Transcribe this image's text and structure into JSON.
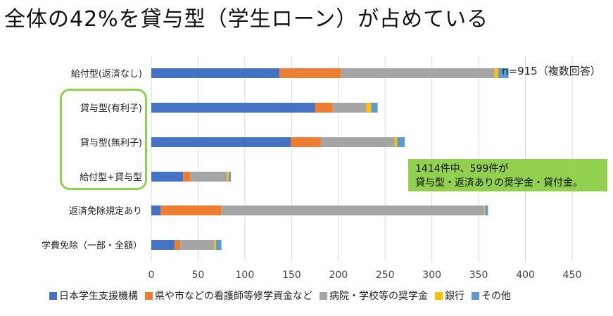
{
  "title": "全体の42%を貸与型（学生ローン）が占めている",
  "note": "n=915（複数回答）",
  "callout": {
    "line1": "1414件中、599件が",
    "line2": "貸与型・返済ありの奨学金・貸付金。"
  },
  "chart_data": {
    "type": "bar",
    "orientation": "horizontal",
    "stacked": true,
    "categories": [
      "給付型(返済なし)",
      "貸与型(有利子)",
      "貸与型(無利子)",
      "給付型+貸与型",
      "返済免除規定あり",
      "学費免除（一部・全額）"
    ],
    "series": [
      {
        "name": "日本学生支援機構",
        "color": "#4472c4",
        "values": [
          137,
          175,
          149,
          34,
          10,
          25
        ]
      },
      {
        "name": "県や市などの看護師等修学資金など",
        "color": "#ed7d31",
        "values": [
          66,
          19,
          32,
          8,
          65,
          6
        ]
      },
      {
        "name": "病院・学校等の奨学金",
        "color": "#a5a5a5",
        "values": [
          164,
          36,
          79,
          39,
          281,
          36
        ]
      },
      {
        "name": "銀行",
        "color": "#ffc000",
        "values": [
          4,
          5,
          3,
          2,
          1,
          2
        ]
      },
      {
        "name": "その他",
        "color": "#5b9bd5",
        "values": [
          11,
          7,
          8,
          2,
          3,
          6
        ]
      }
    ],
    "xlim": [
      0,
      450
    ],
    "xticks": [
      0,
      50,
      100,
      150,
      200,
      250,
      300,
      350,
      400,
      450
    ],
    "grid": true,
    "legend_position": "bottom"
  }
}
